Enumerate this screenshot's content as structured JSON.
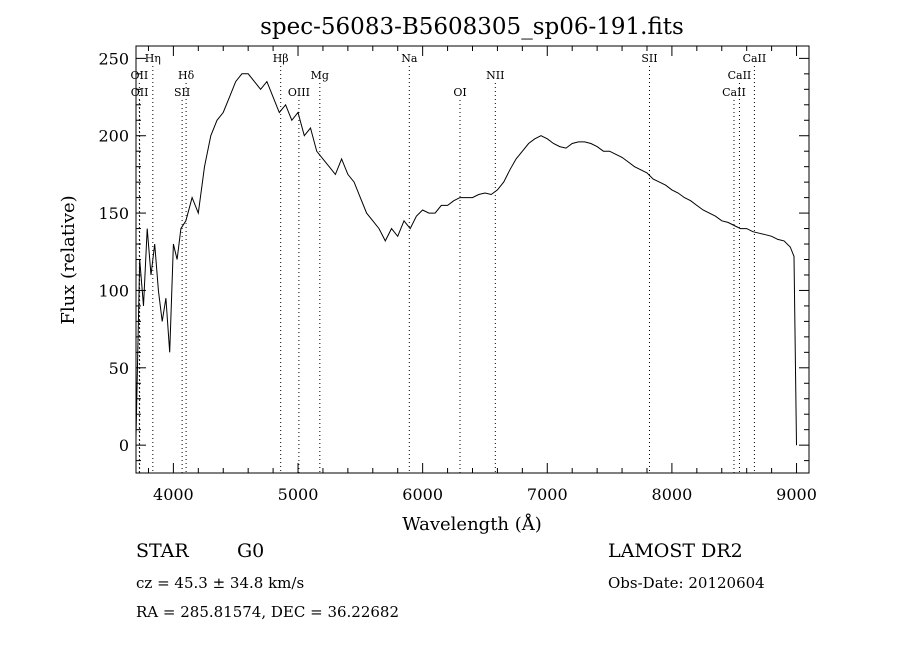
{
  "chart_data": {
    "type": "line",
    "title": "spec-56083-B5608305_sp06-191.fits",
    "xlabel": "Wavelength (Å)",
    "ylabel": "Flux (relative)",
    "xlim": [
      3700,
      9100
    ],
    "ylim": [
      -18,
      258
    ],
    "xticks": [
      4000,
      5000,
      6000,
      7000,
      8000,
      9000
    ],
    "yticks": [
      0,
      50,
      100,
      150,
      200,
      250
    ],
    "grid": false,
    "series": [
      {
        "x": [
          3700,
          3730,
          3760,
          3790,
          3820,
          3850,
          3880,
          3910,
          3940,
          3970,
          4000,
          4030,
          4060,
          4100,
          4150,
          4200,
          4250,
          4300,
          4350,
          4400,
          4450,
          4500,
          4550,
          4600,
          4650,
          4700,
          4750,
          4800,
          4850,
          4900,
          4950,
          5000,
          5050,
          5100,
          5150,
          5200,
          5250,
          5300,
          5350,
          5400,
          5450,
          5500,
          5550,
          5600,
          5650,
          5700,
          5750,
          5800,
          5850,
          5900,
          5950,
          6000,
          6050,
          6100,
          6150,
          6200,
          6250,
          6300,
          6350,
          6400,
          6450,
          6500,
          6550,
          6600,
          6650,
          6700,
          6750,
          6800,
          6850,
          6900,
          6950,
          7000,
          7050,
          7100,
          7150,
          7200,
          7250,
          7300,
          7350,
          7400,
          7450,
          7500,
          7550,
          7600,
          7650,
          7700,
          7750,
          7800,
          7850,
          7900,
          7950,
          8000,
          8050,
          8100,
          8150,
          8200,
          8250,
          8300,
          8350,
          8400,
          8450,
          8500,
          8550,
          8600,
          8650,
          8700,
          8750,
          8800,
          8850,
          8900,
          8950,
          8980,
          9000
        ],
        "y": [
          5,
          120,
          90,
          140,
          110,
          130,
          100,
          80,
          95,
          60,
          130,
          120,
          140,
          145,
          160,
          150,
          180,
          200,
          210,
          215,
          225,
          235,
          240,
          240,
          235,
          230,
          235,
          225,
          215,
          220,
          210,
          215,
          200,
          205,
          190,
          185,
          180,
          175,
          185,
          175,
          170,
          160,
          150,
          145,
          140,
          132,
          140,
          135,
          145,
          140,
          148,
          152,
          150,
          150,
          155,
          155,
          158,
          160,
          160,
          160,
          162,
          163,
          162,
          165,
          170,
          178,
          185,
          190,
          195,
          198,
          200,
          198,
          195,
          193,
          192,
          195,
          196,
          196,
          195,
          193,
          190,
          190,
          188,
          186,
          183,
          180,
          178,
          176,
          172,
          170,
          168,
          165,
          163,
          160,
          158,
          155,
          152,
          150,
          148,
          145,
          144,
          142,
          140,
          140,
          138,
          137,
          136,
          135,
          133,
          132,
          128,
          122,
          0
        ]
      }
    ],
    "lines": [
      {
        "name": "Hη",
        "x": 3835,
        "row": 1
      },
      {
        "name": "OII",
        "x": 3727,
        "row": 2
      },
      {
        "name": "OII",
        "x": 3729,
        "row": 3
      },
      {
        "name": "Hδ",
        "x": 4102,
        "row": 2
      },
      {
        "name": "SII",
        "x": 4070,
        "row": 3
      },
      {
        "name": "Hβ",
        "x": 4861,
        "row": 1
      },
      {
        "name": "OIII",
        "x": 5007,
        "row": 3
      },
      {
        "name": "Mg",
        "x": 5175,
        "row": 2
      },
      {
        "name": "Na",
        "x": 5893,
        "row": 1
      },
      {
        "name": "OI",
        "x": 6300,
        "row": 3
      },
      {
        "name": "NII",
        "x": 6583,
        "row": 2
      },
      {
        "name": "SII",
        "x": 7820,
        "row": 1
      },
      {
        "name": "CaII",
        "x": 8662,
        "row": 1
      },
      {
        "name": "CaII",
        "x": 8542,
        "row": 2
      },
      {
        "name": "CaII",
        "x": 8498,
        "row": 3
      }
    ]
  },
  "info": {
    "object_class": "STAR",
    "subclass": "G0",
    "survey": "LAMOST DR2",
    "redshift": "cz = 45.3 ± 34.8 km/s",
    "obs_date": "Obs-Date: 20120604",
    "coords": "RA = 285.81574, DEC =  36.22682"
  }
}
